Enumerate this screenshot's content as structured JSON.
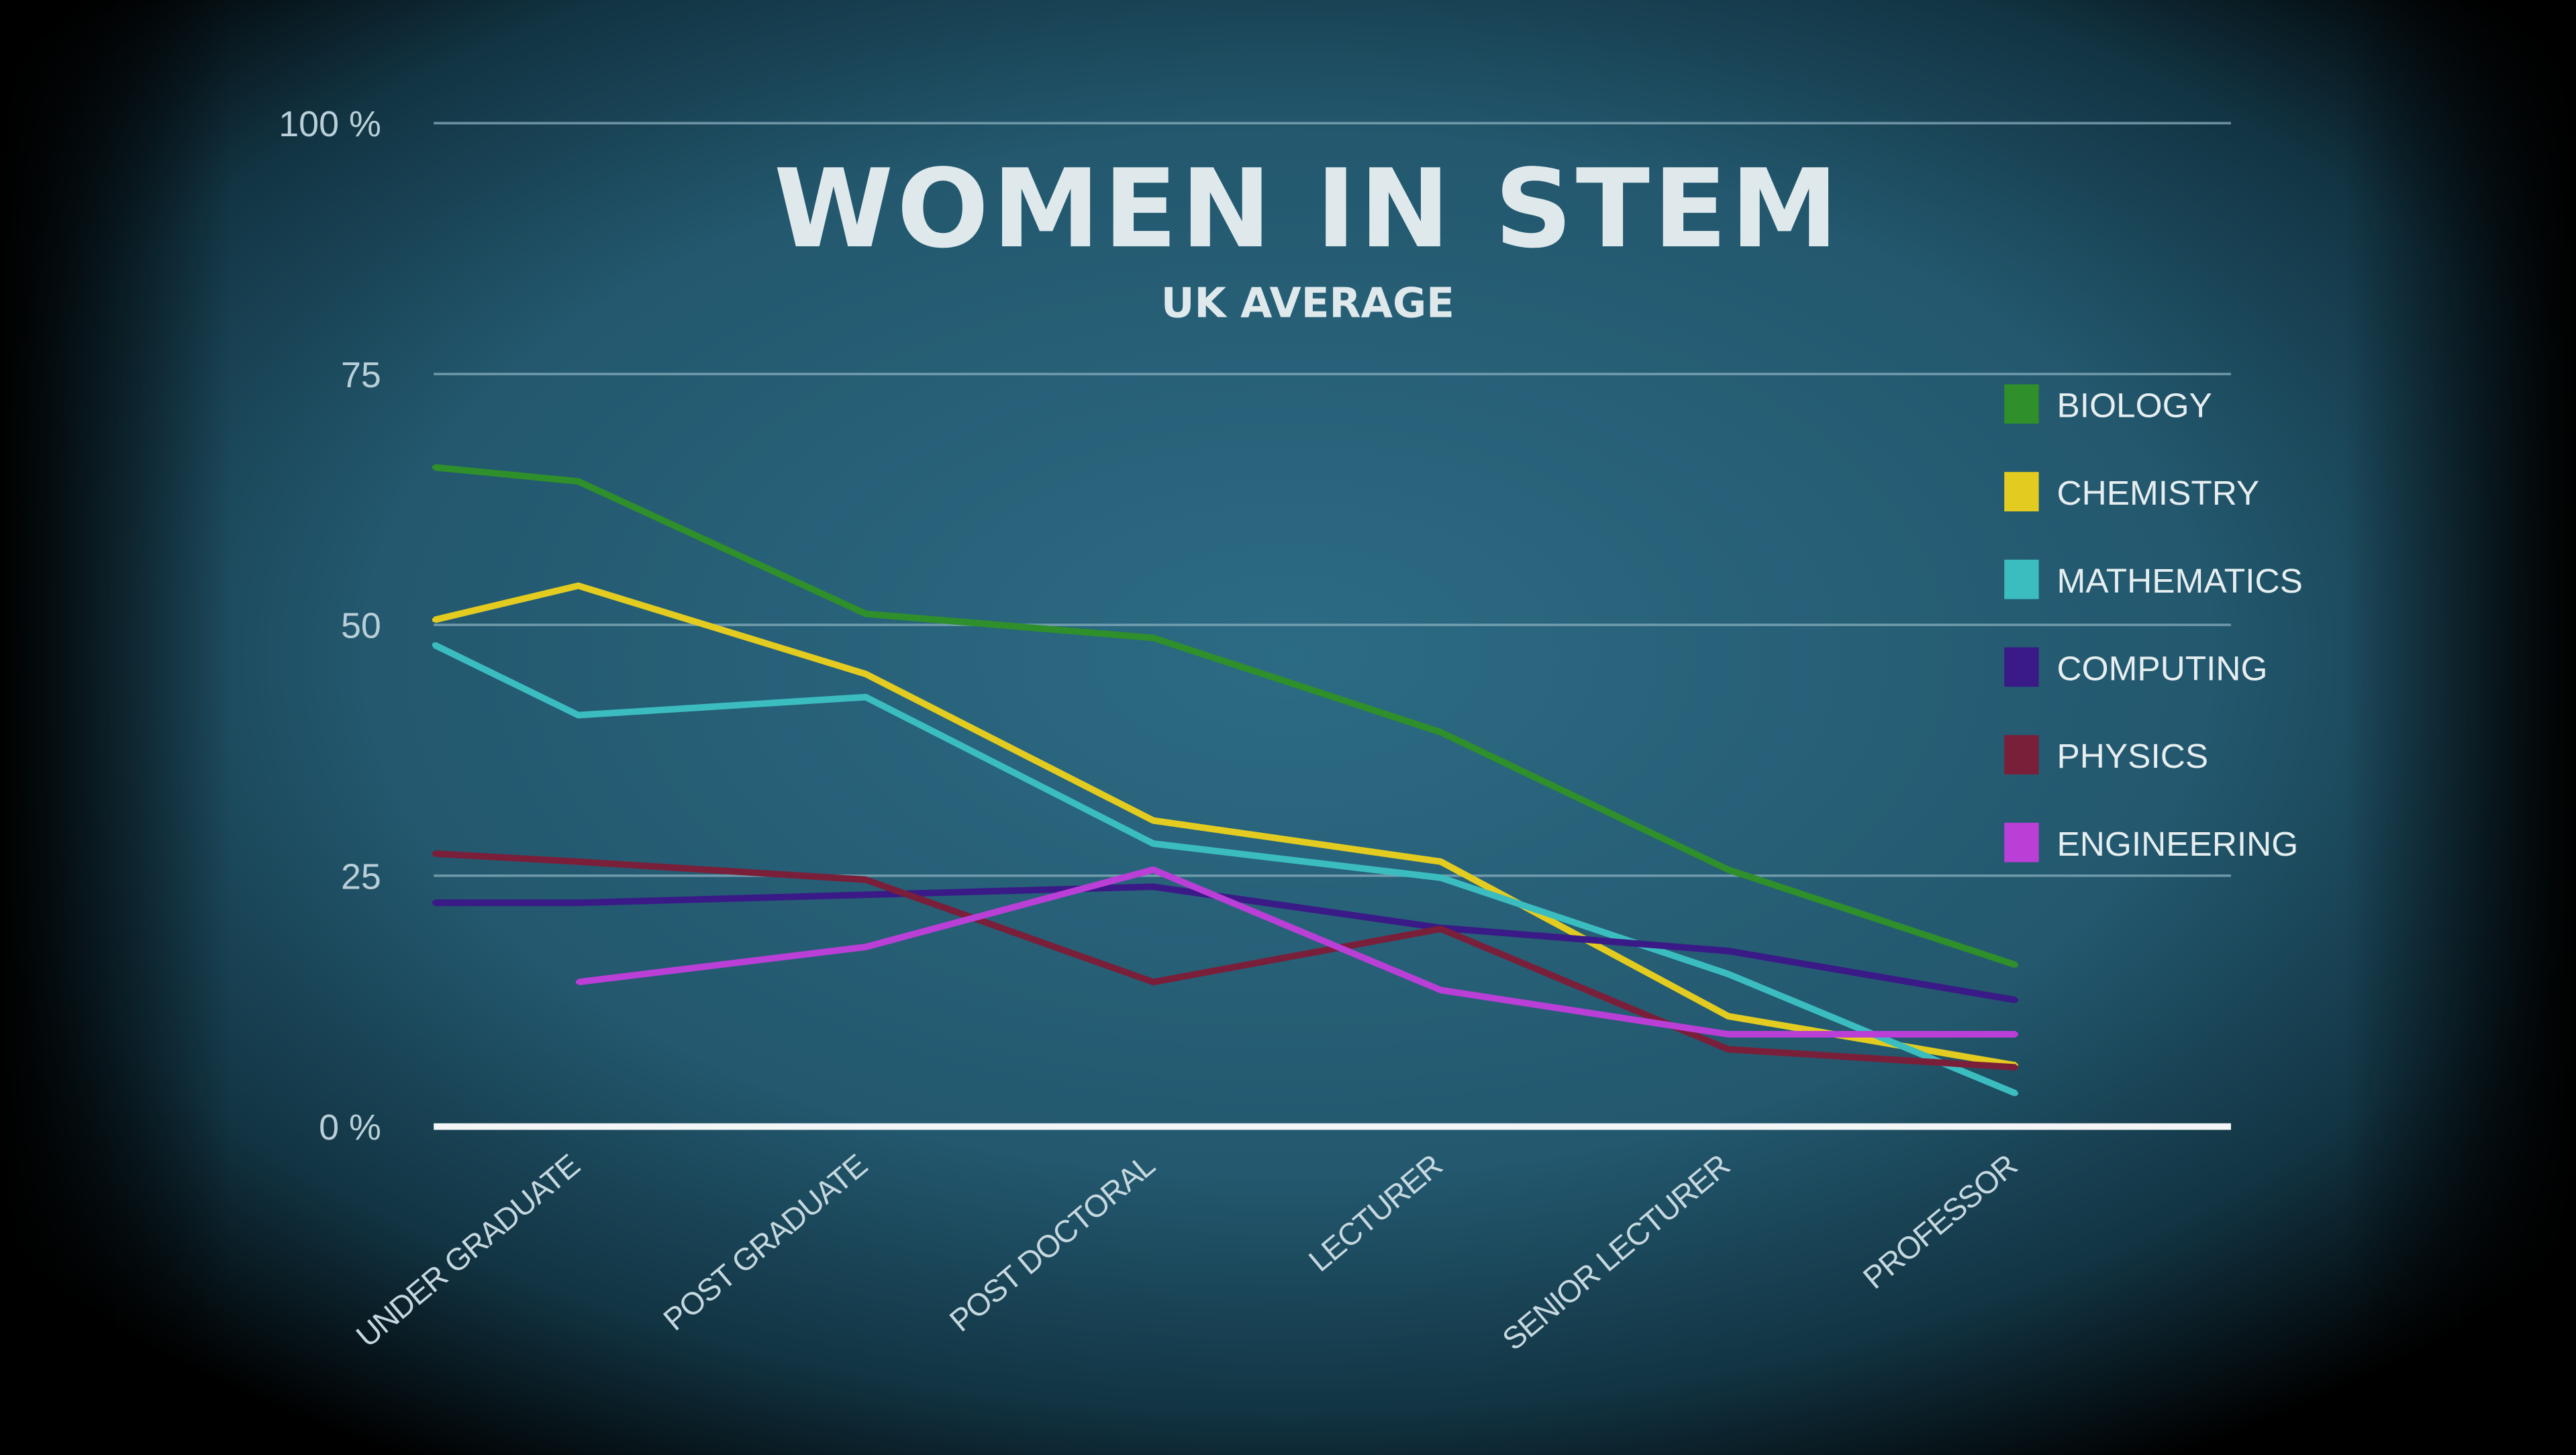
{
  "chart_data": {
    "type": "line",
    "title": "WOMEN IN STEM",
    "subtitle": "UK AVERAGE",
    "xlabel": "",
    "ylabel": "",
    "ylim": [
      0,
      100
    ],
    "y_ticks": [
      {
        "value": 100,
        "label": "100 %"
      },
      {
        "value": 75,
        "label": "75"
      },
      {
        "value": 50,
        "label": "50"
      },
      {
        "value": 25,
        "label": "25"
      },
      {
        "value": 0,
        "label": "0 %"
      }
    ],
    "categories": [
      "UNDER GRADUATE",
      "POST GRADUATE",
      "POST DOCTORAL",
      "LECTURER",
      "SENIOR LECTURER",
      "PROFESSOR"
    ],
    "x": [
      -0.5,
      0,
      1,
      2,
      3,
      4,
      5
    ],
    "grid": true,
    "legend_position": "right",
    "series": [
      {
        "name": "BIOLOGY",
        "color": "#2f8f2a",
        "values": [
          65.7,
          64.3,
          51.1,
          48.7,
          39.3,
          25.6,
          16.1
        ]
      },
      {
        "name": "CHEMISTRY",
        "color": "#e3cc1f",
        "values": [
          50.5,
          53.9,
          45.1,
          30.5,
          26.4,
          11.0,
          6.1
        ]
      },
      {
        "name": "MATHEMATICS",
        "color": "#3bbdc0",
        "values": [
          48.0,
          41.0,
          42.8,
          28.2,
          24.8,
          15.2,
          3.3
        ]
      },
      {
        "name": "COMPUTING",
        "color": "#3a1a86",
        "values": [
          22.3,
          22.3,
          23.1,
          23.9,
          19.8,
          17.5,
          12.6
        ]
      },
      {
        "name": "PHYSICS",
        "color": "#7a1f3a",
        "values": [
          27.2,
          26.4,
          24.6,
          14.4,
          19.7,
          7.7,
          5.9
        ]
      },
      {
        "name": "ENGINEERING",
        "color": "#b93fd6",
        "values": [
          null,
          14.4,
          17.9,
          25.6,
          13.6,
          9.2,
          9.2
        ]
      }
    ]
  }
}
